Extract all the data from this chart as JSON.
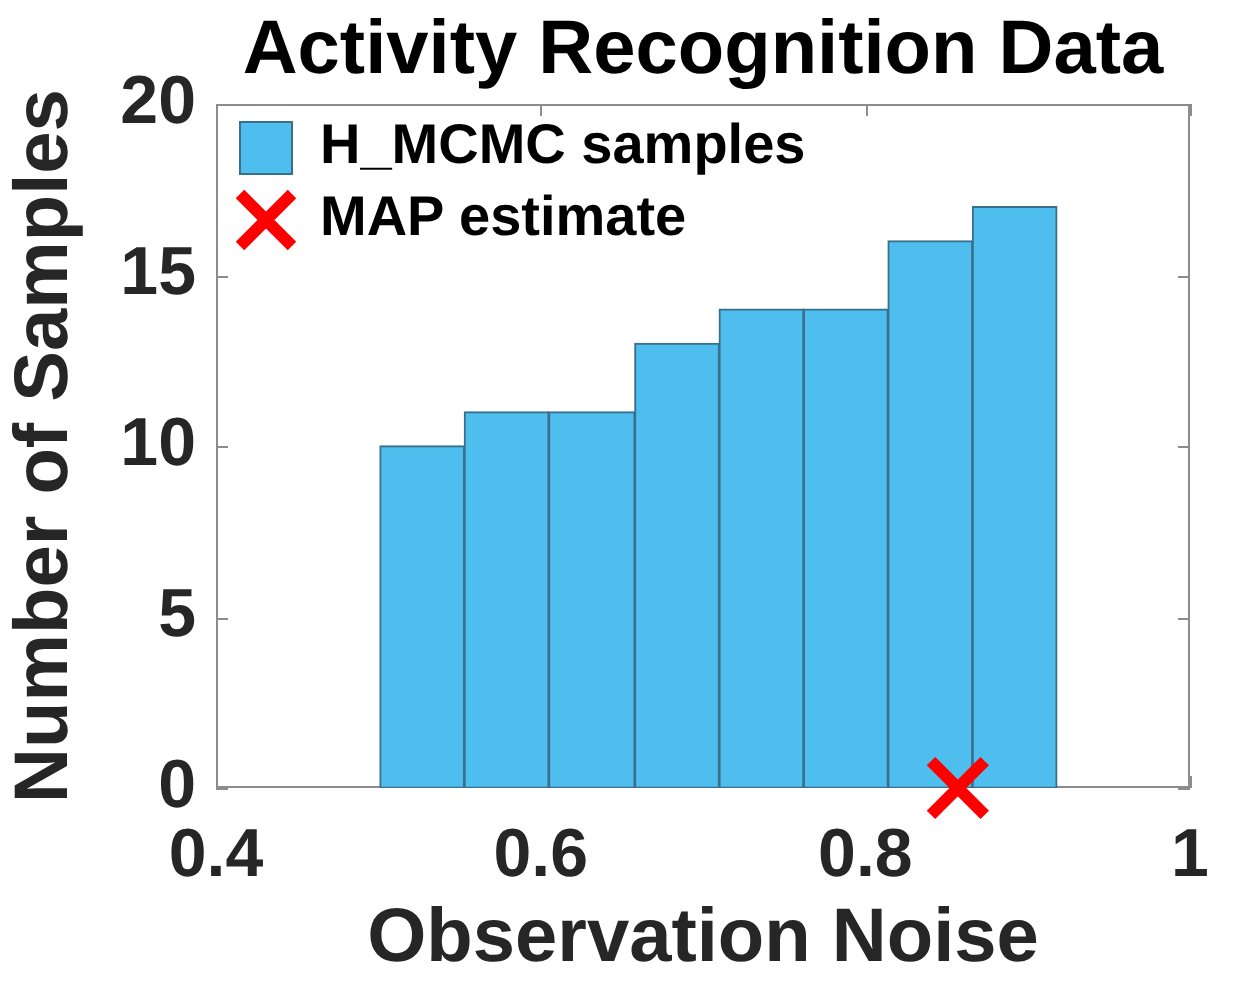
{
  "chart_data": {
    "type": "histogram",
    "title": "Activity Recognition Data",
    "xlabel": "Observation Noise",
    "ylabel": "Number of Samples",
    "bins": [
      0.501,
      0.553,
      0.605,
      0.658,
      0.71,
      0.762,
      0.814,
      0.866,
      0.918
    ],
    "series": [
      {
        "name": "H_MCMC samples",
        "color": "#4dbeee",
        "values": [
          10,
          11,
          11,
          13,
          14,
          14,
          16,
          17
        ]
      },
      {
        "name": "MAP estimate",
        "type": "scatter",
        "x": [
          0.857
        ],
        "values": [
          0
        ],
        "color": "#ff0000",
        "marker": "cross"
      }
    ],
    "xlim": [
      0.4,
      1
    ],
    "xticks": [
      0.4,
      0.6,
      0.8,
      1
    ],
    "ylim": [
      0,
      20
    ],
    "yticks": [
      0,
      5,
      10,
      15,
      20
    ],
    "legend": "top left"
  }
}
